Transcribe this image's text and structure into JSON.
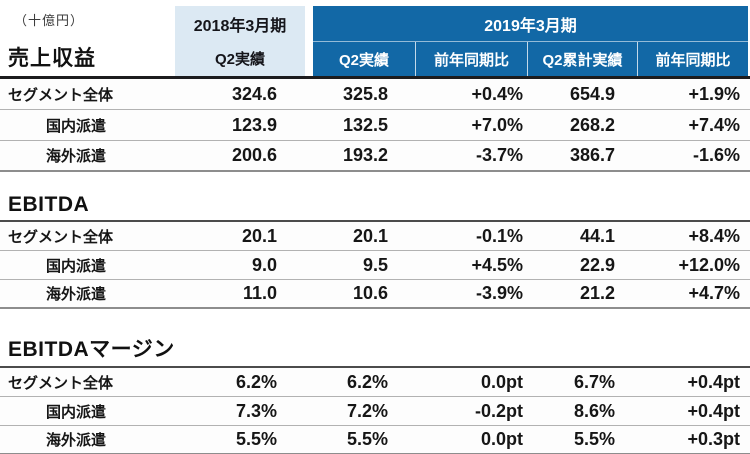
{
  "meta": {
    "unit_label": "（十億円）"
  },
  "colors": {
    "dark_blue": "#1268a6",
    "light_blue": "#dce9f3",
    "header_rule": "#1c1c1e"
  },
  "header": {
    "col_2018": {
      "title": "2018年3月期",
      "sub": "Q2実績"
    },
    "col_2019": {
      "title": "2019年3月期",
      "subs": [
        "Q2実績",
        "前年同期比",
        "Q2累計実績",
        "前年同期比"
      ]
    }
  },
  "sections": [
    {
      "title": "売上収益",
      "rows": [
        {
          "label": "セグメント全体",
          "values": [
            "324.6",
            "325.8",
            "+0.4%",
            "654.9",
            "+1.9%"
          ]
        },
        {
          "label": "国内派遣",
          "values": [
            "123.9",
            "132.5",
            "+7.0%",
            "268.2",
            "+7.4%"
          ]
        },
        {
          "label": "海外派遣",
          "values": [
            "200.6",
            "193.2",
            "-3.7%",
            "386.7",
            "-1.6%"
          ]
        }
      ]
    },
    {
      "title": "EBITDA",
      "rows": [
        {
          "label": "セグメント全体",
          "values": [
            "20.1",
            "20.1",
            "-0.1%",
            "44.1",
            "+8.4%"
          ]
        },
        {
          "label": "国内派遣",
          "values": [
            "9.0",
            "9.5",
            "+4.5%",
            "22.9",
            "+12.0%"
          ]
        },
        {
          "label": "海外派遣",
          "values": [
            "11.0",
            "10.6",
            "-3.9%",
            "21.2",
            "+4.7%"
          ]
        }
      ]
    },
    {
      "title": "EBITDAマージン",
      "rows": [
        {
          "label": "セグメント全体",
          "values": [
            "6.2%",
            "6.2%",
            "0.0pt",
            "6.7%",
            "+0.4pt"
          ]
        },
        {
          "label": "国内派遣",
          "values": [
            "7.3%",
            "7.2%",
            "-0.2pt",
            "8.6%",
            "+0.4pt"
          ]
        },
        {
          "label": "海外派遣",
          "values": [
            "5.5%",
            "5.5%",
            "0.0pt",
            "5.5%",
            "+0.3pt"
          ]
        }
      ]
    }
  ]
}
